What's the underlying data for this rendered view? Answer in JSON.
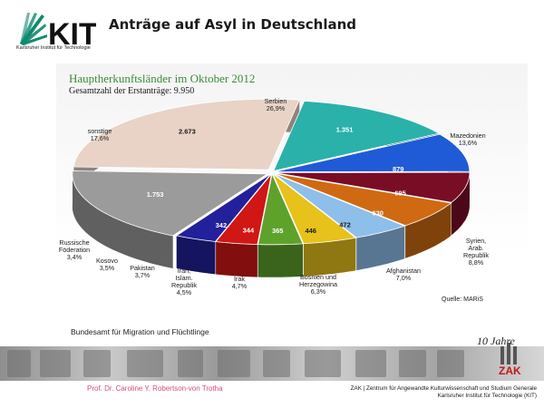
{
  "header": {
    "logo_text": "KIT",
    "logo_subtitle": "Karlsruher Institut für Technologie",
    "slide_title": "Anträge auf Asyl in Deutschland"
  },
  "chart": {
    "title": "Hauptherkunftsländer im Oktober 2012",
    "subtitle": "Gesamtzahl der Erstanträge: 9.950",
    "source": "Quelle: MARiS"
  },
  "chart_data": {
    "type": "pie",
    "title": "Hauptherkunftsländer im Oktober 2012",
    "subtitle": "Gesamtzahl der Erstanträge: 9.950",
    "three_d": true,
    "slices": [
      {
        "name": "Serbien",
        "value": 2673,
        "percent": "26,9%",
        "color": "#e8d3c6"
      },
      {
        "name": "Mazedonien",
        "value": 1351,
        "percent": "13,6%",
        "color": "#2ab1aa"
      },
      {
        "name": "Syrien, Arab. Republik",
        "value": 879,
        "percent": "8,8%",
        "color": "#1f5bd6"
      },
      {
        "name": "Afghanistan",
        "value": 695,
        "percent": "7,0%",
        "color": "#7a0d26"
      },
      {
        "name": "Bosnien und Herzegowina",
        "value": 630,
        "percent": "6,3%",
        "color": "#cf6a12"
      },
      {
        "name": "Irak",
        "value": 472,
        "percent": "4,7%",
        "color": "#8ebeea"
      },
      {
        "name": "Iran, Islam. Republik",
        "value": 446,
        "percent": "4,5%",
        "color": "#e6c21b"
      },
      {
        "name": "Pakistan",
        "value": 365,
        "percent": "3,7%",
        "color": "#5ea22c"
      },
      {
        "name": "Kosovo",
        "value": 344,
        "percent": "3,5%",
        "color": "#d11616"
      },
      {
        "name": "Russische Föderation",
        "value": 342,
        "percent": "3,4%",
        "color": "#22209a"
      },
      {
        "name": "sonstige",
        "value": 1753,
        "percent": "17,6%",
        "color": "#9b9b9b"
      }
    ]
  },
  "footer": {
    "org": "Bundesamt für Migration und Flüchtlinge",
    "author": "Prof. Dr. Caroline Y. Robertson-von Trotha",
    "institute_line1": "ZAK | Zentrum für Angewandte Kulturwissenschaft und Studium Generale",
    "institute_line2": "Karlsruher Institut für Technologie (KIT)",
    "badge_top": "10 Jahre",
    "badge_bottom": "ZAK"
  }
}
